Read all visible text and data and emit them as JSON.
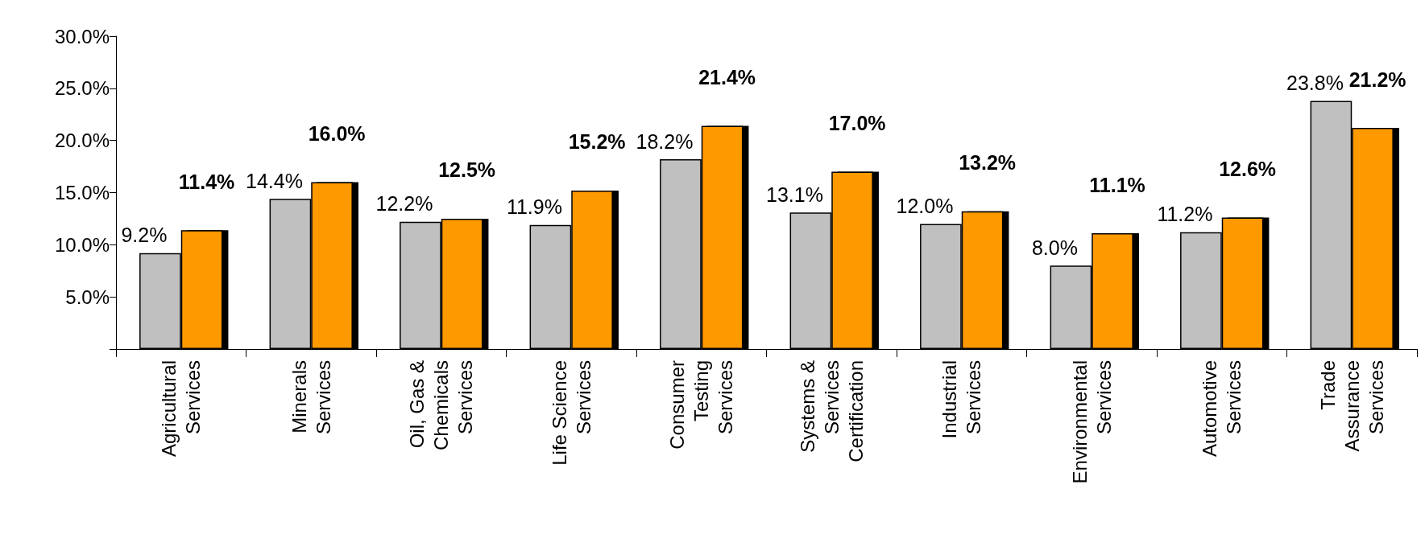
{
  "chart_data": {
    "type": "bar",
    "categories": [
      "Agricultural\nServices",
      "Minerals\nServices",
      "Oil, Gas &\nChemicals\nServices",
      "Life Science\nServices",
      "Consumer\nTesting\nServices",
      "Systems &\nServices\nCertification",
      "Industrial\nServices",
      "Environmental\nServices",
      "Automotive\nServices",
      "Trade\nAssurance\nServices"
    ],
    "series": [
      {
        "color": "#c0c0c0",
        "values": [
          9.2,
          14.4,
          12.2,
          11.9,
          18.2,
          13.1,
          12.0,
          8.0,
          11.2,
          23.8
        ],
        "value_labels": [
          "9.2%",
          "14.4%",
          "12.2%",
          "11.9%",
          "18.2%",
          "13.1%",
          "12.0%",
          "8.0%",
          "11.2%",
          "23.8%"
        ]
      },
      {
        "color": "#ff9900",
        "values": [
          11.4,
          16.0,
          12.5,
          15.2,
          21.4,
          17.0,
          13.2,
          11.1,
          12.6,
          21.2
        ],
        "value_labels": [
          "11.4%",
          "16.0%",
          "12.5%",
          "15.2%",
          "21.4%",
          "17.0%",
          "13.2%",
          "11.1%",
          "12.6%",
          "21.2%"
        ]
      }
    ],
    "ylim": [
      0,
      30
    ],
    "yticks": [
      {
        "value": 0,
        "label": null
      },
      {
        "value": 5,
        "label": "5.0%"
      },
      {
        "value": 10,
        "label": "10.0%"
      },
      {
        "value": 15,
        "label": "15.0%"
      },
      {
        "value": 20,
        "label": "20.0%"
      },
      {
        "value": 25,
        "label": "25.0%"
      },
      {
        "value": 30,
        "label": "30.0%"
      }
    ],
    "grid": false
  }
}
